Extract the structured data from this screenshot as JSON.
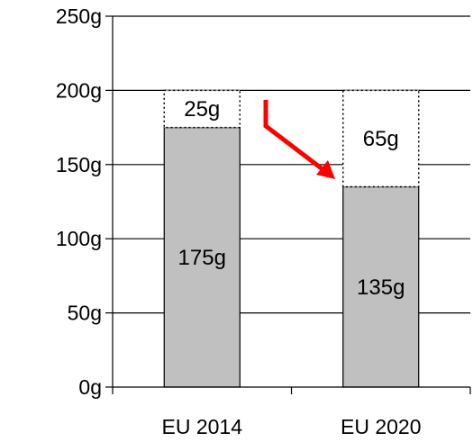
{
  "chart_data": {
    "type": "bar",
    "stacked": true,
    "categories": [
      "EU 2014",
      "EU 2020"
    ],
    "series": [
      {
        "values": [
          175,
          135
        ],
        "labels": [
          "175g",
          "135g"
        ],
        "style": "solid",
        "color": "#c0c0c0"
      },
      {
        "values": [
          25,
          65
        ],
        "labels": [
          "25g",
          "65g"
        ],
        "style": "dotted-outline",
        "color": "#ffffff"
      }
    ],
    "ylim": [
      0,
      250
    ],
    "yticks": [
      0,
      50,
      100,
      150,
      200,
      250
    ],
    "ytick_labels": [
      "0g",
      "50g",
      "100g",
      "150g",
      "200g",
      "250g"
    ],
    "grid": true,
    "legend": "none",
    "annotation": {
      "type": "arrow",
      "direction": "down-right",
      "color": "#ff0000"
    },
    "title": "",
    "xlabel": "",
    "ylabel": ""
  }
}
